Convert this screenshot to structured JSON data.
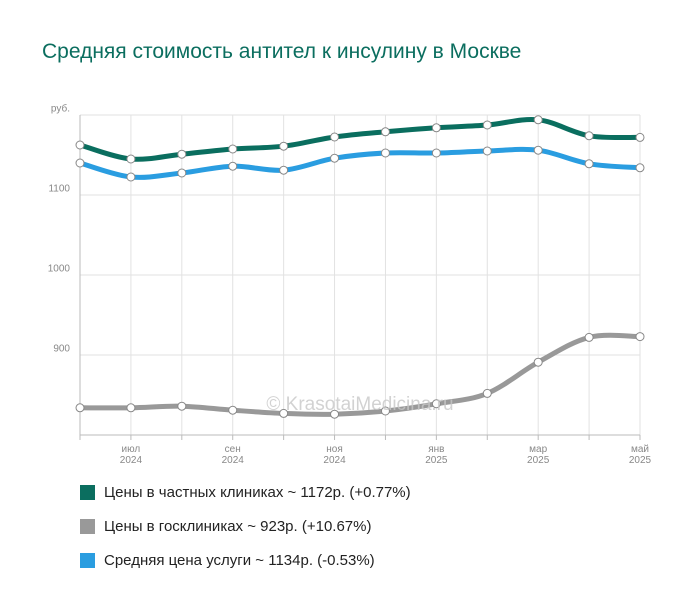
{
  "chart_data": {
    "type": "line",
    "title": "Средняя стоимость антител к инсулину в Москве",
    "watermark": "© KrasotaiMedicina.ru",
    "categories": [
      null,
      "июл 2024",
      null,
      "сен 2024",
      null,
      "ноя 2024",
      null,
      "янв 2025",
      null,
      "мар 2025",
      null,
      "май 2025"
    ],
    "series": [
      {
        "name": "Цены в частных клиниках ~ 1172р. (+0.77%)",
        "color": "#0b6e5f",
        "values": [
          1162.5,
          1145,
          1151,
          1157.5,
          1161,
          1172.5,
          1179,
          1184,
          1187.5,
          1194,
          1174,
          1172
        ]
      },
      {
        "name": "Цены в госклиниках ~ 923р. (+10.67%)",
        "color": "#999999",
        "values": [
          834,
          834,
          836,
          831,
          827,
          826,
          830,
          839,
          852,
          891,
          922,
          923
        ]
      },
      {
        "name": "Средняя цена услуги ~ 1134р. (-0.53%)",
        "color": "#2a9de0",
        "values": [
          1140,
          1122.5,
          1127.5,
          1136,
          1131,
          1146,
          1152.5,
          1152.5,
          1155,
          1156,
          1139,
          1134
        ]
      }
    ],
    "ylim": [
      800,
      1200
    ],
    "yticks": [
      900,
      1000,
      1100,
      {
        "value": 1200,
        "label": "руб."
      }
    ],
    "grid": true
  }
}
